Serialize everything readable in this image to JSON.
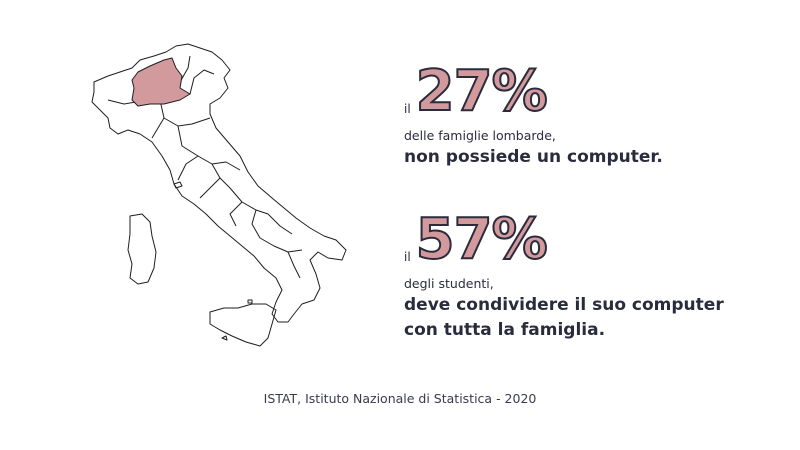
{
  "colors": {
    "accent": "#d29a9c",
    "text": "#2a2b3d",
    "map_outline": "#1e1e1e",
    "background": "#ffffff"
  },
  "map": {
    "highlighted_region": "Lombardia"
  },
  "stats": [
    {
      "prefix": "il",
      "value": "27%",
      "description": "delle famiglie lombarde,",
      "emphasis": [
        "non possiede un computer."
      ]
    },
    {
      "prefix": "il",
      "value": "57%",
      "description": "degli studenti,",
      "emphasis": [
        "deve condividere il suo computer",
        "con tutta la famiglia."
      ]
    }
  ],
  "source": "ISTAT, Istituto Nazionale di Statistica - 2020"
}
